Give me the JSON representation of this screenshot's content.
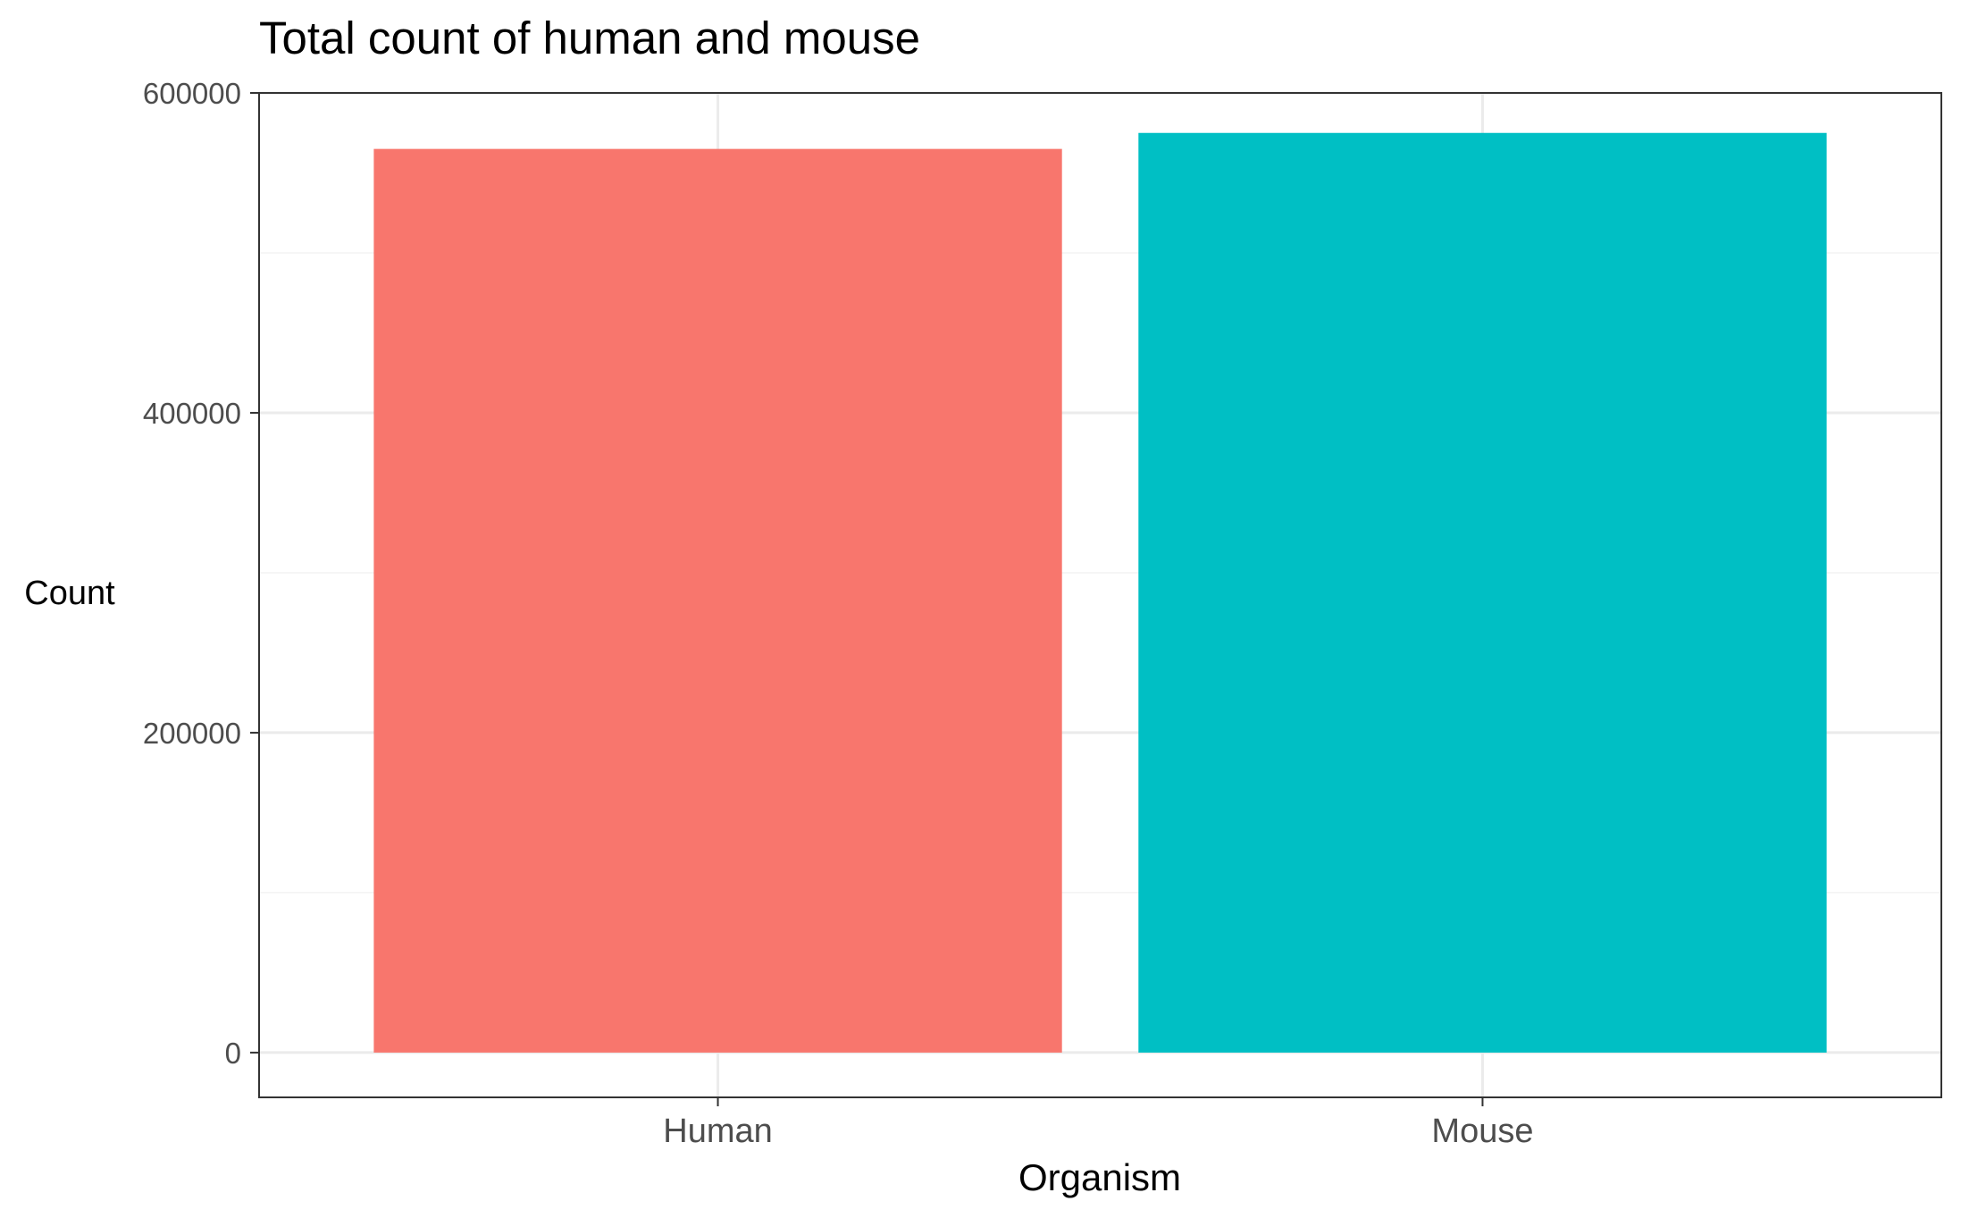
{
  "chart_data": {
    "type": "bar",
    "title": "Total count of human and mouse",
    "xlabel": "Organism",
    "ylabel": "Count",
    "categories": [
      "Human",
      "Mouse"
    ],
    "values": [
      565000,
      575000
    ],
    "colors": [
      "#F8766D",
      "#00BFC4"
    ],
    "ylim": [
      -28000,
      600000
    ],
    "yticks": [
      0,
      200000,
      400000,
      600000
    ],
    "ytick_labels": [
      "0",
      "200000",
      "400000",
      "600000"
    ],
    "grid": true,
    "legend": "none"
  }
}
